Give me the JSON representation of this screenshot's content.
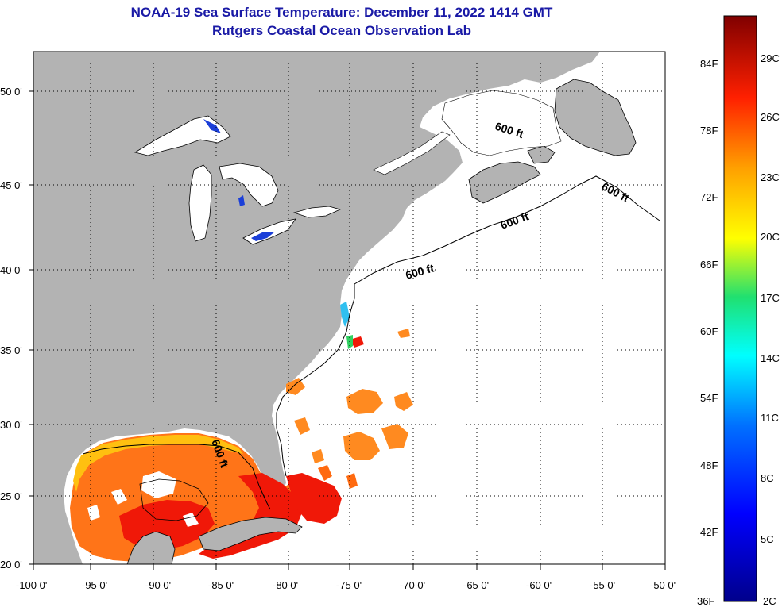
{
  "title": {
    "line1": "NOAA-19 Sea Surface Temperature:  December 11, 2022 1414 GMT",
    "line2": "Rutgers Coastal Ocean Observation Lab"
  },
  "axes": {
    "lon_ticks": [
      "-100 0'",
      "-95 0'",
      "-90 0'",
      "-85 0'",
      "-80 0'",
      "-75 0'",
      "-70 0'",
      "-65 0'",
      "-60 0'",
      "-55 0'",
      "-50 0'"
    ],
    "lat_ticks": [
      "50 0'",
      "45 0'",
      "40 0'",
      "35 0'",
      "30 0'",
      "25 0'",
      "20 0'"
    ]
  },
  "contour_labels": [
    "600 ft",
    "600 ft",
    "600 ft",
    "600 ft",
    "600 ft"
  ],
  "colorbar": {
    "fahrenheit": [
      "84F",
      "78F",
      "72F",
      "66F",
      "60F",
      "54F",
      "48F",
      "42F",
      "36F"
    ],
    "celsius": [
      "29C",
      "26C",
      "23C",
      "20C",
      "17C",
      "14C",
      "11C",
      "8C",
      "5C",
      "2C"
    ]
  },
  "colors": {
    "land": "#b3b3b3",
    "ocean_no_data": "#ffffff",
    "title": "#1a1aa6",
    "grid": "#000000"
  }
}
